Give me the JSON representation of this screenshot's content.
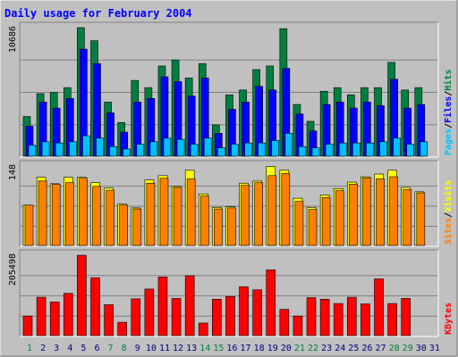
{
  "chart_data": {
    "type": "bar",
    "title": "Daily usage for February 2004",
    "categories": [
      "1",
      "2",
      "3",
      "4",
      "5",
      "6",
      "7",
      "8",
      "9",
      "10",
      "11",
      "12",
      "13",
      "14",
      "15",
      "16",
      "17",
      "18",
      "19",
      "20",
      "21",
      "22",
      "23",
      "24",
      "25",
      "26",
      "27",
      "28",
      "29",
      "30",
      "31"
    ],
    "weekend_days": [
      "1",
      "7",
      "8",
      "14",
      "15",
      "21",
      "22",
      "28",
      "29"
    ],
    "colors": {
      "hits": "#008040",
      "files": "#0000ff",
      "pages": "#00c0ff",
      "visits": "#ffff00",
      "sites": "#ff8000",
      "kbytes": "#ff0000",
      "weekday_label": "#000080",
      "weekend_label": "#008040"
    },
    "panels": [
      {
        "id": "top",
        "axis_max_label": "10686",
        "ymax": 10686,
        "legend": [
          {
            "text": "Pages",
            "color": "#00c0ff"
          },
          {
            "text": "Files",
            "color": "#0000ff"
          },
          {
            "text": "Hits",
            "color": "#008040"
          }
        ],
        "series": [
          {
            "name": "Hits",
            "values": [
              3300,
              5200,
              5300,
              5700,
              10686,
              9600,
              4500,
              2800,
              6300,
              5700,
              7500,
              8000,
              6500,
              7700,
              2600,
              5100,
              5500,
              7200,
              7500,
              10600,
              4300,
              2900,
              5400,
              5700,
              5100,
              5700,
              5700,
              7800,
              5500,
              5700,
              null
            ]
          },
          {
            "name": "Files",
            "values": [
              2500,
              4500,
              4000,
              4800,
              8900,
              7700,
              3600,
              2000,
              4500,
              4800,
              6600,
              6200,
              5000,
              6500,
              1900,
              3900,
              4500,
              5800,
              5500,
              7300,
              3500,
              2100,
              4300,
              4500,
              4000,
              4500,
              4200,
              6400,
              4000,
              4300,
              null
            ]
          },
          {
            "name": "Pages",
            "values": [
              900,
              1200,
              1100,
              1200,
              1700,
              1500,
              800,
              600,
              1000,
              1200,
              1500,
              1400,
              1000,
              1500,
              700,
              1000,
              1100,
              1100,
              1300,
              1900,
              800,
              700,
              1000,
              1100,
              1100,
              1100,
              1200,
              1500,
              1000,
              1200,
              null
            ]
          }
        ]
      },
      {
        "id": "middle",
        "axis_max_label": "148",
        "ymax": 148,
        "legend": [
          {
            "text": "Sites",
            "color": "#ff8000"
          },
          {
            "text": "Visits",
            "color": "#ffff00"
          }
        ],
        "series": [
          {
            "name": "Visits",
            "values": [
              75,
              127,
              115,
              127,
              127,
              117,
              107,
              77,
              70,
              122,
              130,
              110,
              140,
              96,
              71,
              72,
              116,
              120,
              147,
              140,
              88,
              71,
              94,
              106,
              118,
              128,
              133,
              140,
              108,
              100,
              null
            ]
          },
          {
            "name": "Sites",
            "values": [
              75,
              120,
              114,
              117,
              125,
              110,
              103,
              75,
              68,
              116,
              125,
              108,
              124,
              92,
              68,
              70,
              112,
              117,
              130,
              134,
              82,
              67,
              89,
              102,
              114,
              126,
              124,
              128,
              104,
              98,
              null
            ]
          }
        ]
      },
      {
        "id": "bottom",
        "axis_max_label": "205498",
        "ymax": 205498,
        "legend": [
          {
            "text": "KBytes",
            "color": "#ff0000"
          }
        ],
        "series": [
          {
            "name": "KBytes",
            "values": [
              50000,
              98000,
              86000,
              108000,
              205498,
              148000,
              79000,
              34000,
              94000,
              119000,
              150000,
              95000,
              153000,
              32000,
              93000,
              100000,
              125000,
              117000,
              168000,
              67000,
              50000,
              97000,
              93000,
              82000,
              98000,
              81000,
              145000,
              82000,
              95000,
              null,
              null
            ]
          }
        ]
      }
    ]
  }
}
